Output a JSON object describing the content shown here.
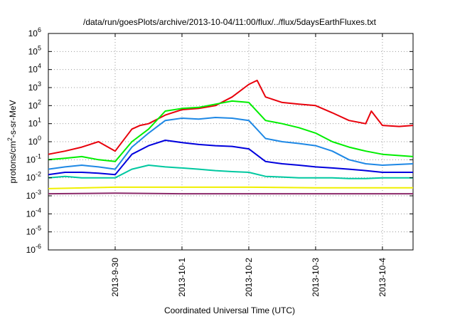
{
  "chart_data": {
    "type": "line",
    "title": "/data/run/goesPlots/archive/2013-10-04/11:00/flux/../flux/5daysEarthFluxes.txt",
    "xlabel": "Coordinated Universal Time (UTC)",
    "ylabel_main": "protons/cm",
    "ylabel_sup": "2",
    "ylabel_tail": "-s-sr-MeV",
    "yscale": "log",
    "ylim": [
      1e-06,
      1000000.0
    ],
    "xlim": [
      "2013-09-29 00:00",
      "2013-10-04 11:00"
    ],
    "grid": true,
    "x_tick_labels": [
      "2013-9-30",
      "2013-10-1",
      "2013-10-2",
      "2013-10-3",
      "2013-10-4"
    ],
    "x_tick_values": [
      "2013-09-30",
      "2013-10-01",
      "2013-10-02",
      "2013-10-03",
      "2013-10-04"
    ],
    "y_ticks": [
      {
        "base": "10",
        "exp": "-6",
        "value": 1e-06
      },
      {
        "base": "10",
        "exp": "-5",
        "value": 1e-05
      },
      {
        "base": "10",
        "exp": "-4",
        "value": 0.0001
      },
      {
        "base": "10",
        "exp": "-3",
        "value": 0.001
      },
      {
        "base": "10",
        "exp": "-2",
        "value": 0.01
      },
      {
        "base": "10",
        "exp": "-1",
        "value": 0.1
      },
      {
        "base": "10",
        "exp": "0",
        "value": 1
      },
      {
        "base": "10",
        "exp": "1",
        "value": 10
      },
      {
        "base": "10",
        "exp": "2",
        "value": 100
      },
      {
        "base": "10",
        "exp": "3",
        "value": 1000
      },
      {
        "base": "10",
        "exp": "4",
        "value": 10000
      },
      {
        "base": "10",
        "exp": "5",
        "value": 100000
      },
      {
        "base": "10",
        "exp": "6",
        "value": 1000000
      }
    ],
    "series": [
      {
        "color": "#e8000b",
        "x": [
          "2013-09-29 00:00",
          "2013-09-29 06:00",
          "2013-09-29 12:00",
          "2013-09-29 18:00",
          "2013-09-30 00:00",
          "2013-09-30 06:00",
          "2013-09-30 09:00",
          "2013-09-30 12:00",
          "2013-09-30 18:00",
          "2013-10-01 00:00",
          "2013-10-01 06:00",
          "2013-10-01 12:00",
          "2013-10-01 18:00",
          "2013-10-02 00:00",
          "2013-10-02 03:00",
          "2013-10-02 06:00",
          "2013-10-02 12:00",
          "2013-10-02 18:00",
          "2013-10-03 00:00",
          "2013-10-03 06:00",
          "2013-10-03 12:00",
          "2013-10-03 18:00",
          "2013-10-03 20:00",
          "2013-10-04 00:00",
          "2013-10-04 06:00",
          "2013-10-04 11:00"
        ],
        "y": [
          0.2,
          0.3,
          0.5,
          1.0,
          0.3,
          5,
          8,
          10,
          30,
          60,
          70,
          100,
          300,
          1500,
          2500,
          300,
          150,
          120,
          100,
          40,
          15,
          10,
          50,
          8,
          7,
          8
        ]
      },
      {
        "color": "#00ee00",
        "x": [
          "2013-09-29 00:00",
          "2013-09-29 06:00",
          "2013-09-29 12:00",
          "2013-09-29 18:00",
          "2013-09-30 00:00",
          "2013-09-30 06:00",
          "2013-09-30 12:00",
          "2013-09-30 18:00",
          "2013-10-01 00:00",
          "2013-10-01 06:00",
          "2013-10-01 12:00",
          "2013-10-01 18:00",
          "2013-10-02 00:00",
          "2013-10-02 06:00",
          "2013-10-02 12:00",
          "2013-10-02 18:00",
          "2013-10-03 00:00",
          "2013-10-03 06:00",
          "2013-10-03 12:00",
          "2013-10-03 18:00",
          "2013-10-04 00:00",
          "2013-10-04 11:00"
        ],
        "y": [
          0.1,
          0.12,
          0.15,
          0.1,
          0.08,
          1,
          5,
          50,
          70,
          80,
          120,
          180,
          150,
          15,
          10,
          6,
          3,
          1,
          0.5,
          0.3,
          0.2,
          0.15
        ]
      },
      {
        "color": "#1e88e5",
        "x": [
          "2013-09-29 00:00",
          "2013-09-29 06:00",
          "2013-09-29 12:00",
          "2013-09-29 18:00",
          "2013-09-30 00:00",
          "2013-09-30 06:00",
          "2013-09-30 12:00",
          "2013-09-30 18:00",
          "2013-10-01 00:00",
          "2013-10-01 06:00",
          "2013-10-01 12:00",
          "2013-10-01 18:00",
          "2013-10-02 00:00",
          "2013-10-02 06:00",
          "2013-10-02 12:00",
          "2013-10-02 18:00",
          "2013-10-03 00:00",
          "2013-10-03 06:00",
          "2013-10-03 12:00",
          "2013-10-03 18:00",
          "2013-10-04 00:00",
          "2013-10-04 11:00"
        ],
        "y": [
          0.03,
          0.04,
          0.05,
          0.04,
          0.03,
          0.5,
          3,
          15,
          20,
          18,
          22,
          20,
          15,
          1.5,
          1.0,
          0.8,
          0.6,
          0.3,
          0.1,
          0.06,
          0.05,
          0.06
        ]
      },
      {
        "color": "#0000dd",
        "x": [
          "2013-09-29 00:00",
          "2013-09-29 06:00",
          "2013-09-29 12:00",
          "2013-09-29 18:00",
          "2013-09-30 00:00",
          "2013-09-30 06:00",
          "2013-09-30 12:00",
          "2013-09-30 18:00",
          "2013-10-01 00:00",
          "2013-10-01 06:00",
          "2013-10-01 12:00",
          "2013-10-01 18:00",
          "2013-10-02 00:00",
          "2013-10-02 06:00",
          "2013-10-02 12:00",
          "2013-10-02 18:00",
          "2013-10-03 00:00",
          "2013-10-03 06:00",
          "2013-10-03 12:00",
          "2013-10-03 18:00",
          "2013-10-04 00:00",
          "2013-10-04 11:00"
        ],
        "y": [
          0.015,
          0.02,
          0.02,
          0.018,
          0.015,
          0.2,
          0.6,
          1.2,
          0.9,
          0.7,
          0.6,
          0.55,
          0.4,
          0.08,
          0.06,
          0.05,
          0.04,
          0.035,
          0.03,
          0.025,
          0.02,
          0.02
        ]
      },
      {
        "color": "#00c8a0",
        "x": [
          "2013-09-29 00:00",
          "2013-09-29 06:00",
          "2013-09-29 12:00",
          "2013-09-29 18:00",
          "2013-09-30 00:00",
          "2013-09-30 06:00",
          "2013-09-30 12:00",
          "2013-09-30 18:00",
          "2013-10-01 00:00",
          "2013-10-01 06:00",
          "2013-10-01 12:00",
          "2013-10-01 18:00",
          "2013-10-02 00:00",
          "2013-10-02 06:00",
          "2013-10-02 12:00",
          "2013-10-02 18:00",
          "2013-10-03 00:00",
          "2013-10-03 06:00",
          "2013-10-03 12:00",
          "2013-10-03 18:00",
          "2013-10-04 00:00",
          "2013-10-04 11:00"
        ],
        "y": [
          0.01,
          0.012,
          0.01,
          0.01,
          0.01,
          0.03,
          0.05,
          0.04,
          0.035,
          0.03,
          0.025,
          0.022,
          0.02,
          0.012,
          0.011,
          0.01,
          0.01,
          0.01,
          0.009,
          0.009,
          0.01,
          0.01
        ]
      },
      {
        "color": "#f0f000",
        "x": [
          "2013-09-29 00:00",
          "2013-09-30 00:00",
          "2013-10-01 00:00",
          "2013-10-02 00:00",
          "2013-10-03 00:00",
          "2013-10-04 00:00",
          "2013-10-04 11:00"
        ],
        "y": [
          0.0025,
          0.003,
          0.003,
          0.003,
          0.0028,
          0.0028,
          0.0028
        ]
      },
      {
        "color": "#8b2a6a",
        "x": [
          "2013-09-29 00:00",
          "2013-09-30 00:00",
          "2013-10-01 00:00",
          "2013-10-02 00:00",
          "2013-10-03 00:00",
          "2013-10-04 00:00",
          "2013-10-04 11:00"
        ],
        "y": [
          0.0013,
          0.0014,
          0.0013,
          0.0013,
          0.0013,
          0.0013,
          0.0013
        ]
      }
    ]
  }
}
